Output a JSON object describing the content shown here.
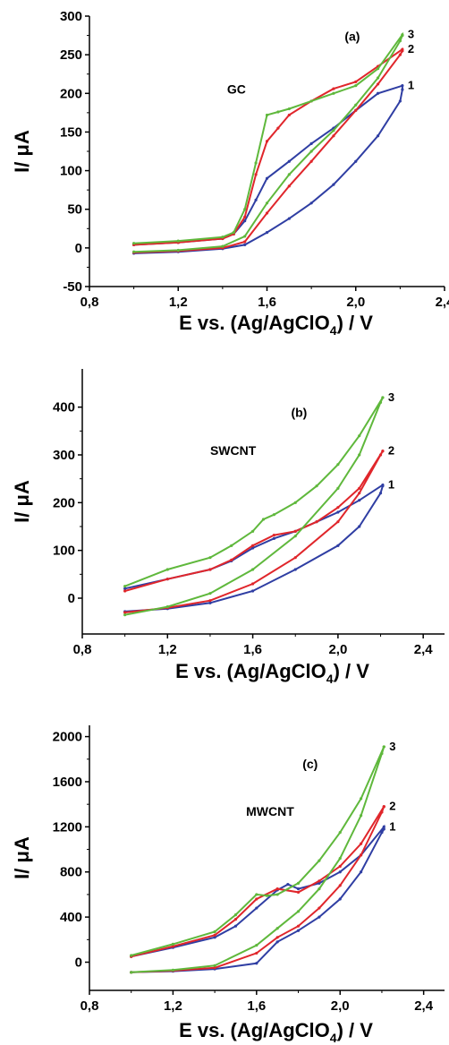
{
  "chart_data": [
    {
      "type": "line",
      "panel_label": "(a)",
      "annotation": "GC",
      "xlabel": "E vs. (Ag/AgClO",
      "xlabel_sub": "4",
      "xlabel_tail": ") / V",
      "ylabel_main": "I/ ",
      "ylabel_mu": "μA",
      "xlim": [
        0.8,
        2.4
      ],
      "ylim": [
        -50,
        300
      ],
      "xticks": [
        0.8,
        1.2,
        1.6,
        2.0,
        2.4
      ],
      "xtick_labels": [
        "0,8",
        "1,2",
        "1,6",
        "2,0",
        "2,4"
      ],
      "yticks": [
        -50,
        0,
        50,
        100,
        150,
        200,
        250,
        300
      ],
      "ytick_labels": [
        "-50",
        "0",
        "50",
        "100",
        "150",
        "200",
        "250",
        "300"
      ],
      "series": [
        {
          "label": "1",
          "color": "#2f3ea3",
          "forward": [
            [
              1.0,
              -7
            ],
            [
              1.2,
              -5
            ],
            [
              1.4,
              -1
            ],
            [
              1.5,
              4
            ],
            [
              1.6,
              20
            ],
            [
              1.7,
              38
            ],
            [
              1.8,
              58
            ],
            [
              1.9,
              82
            ],
            [
              2.0,
              112
            ],
            [
              2.1,
              145
            ],
            [
              2.2,
              190
            ],
            [
              2.21,
              205
            ]
          ],
          "reverse": [
            [
              2.21,
              210
            ],
            [
              2.1,
              200
            ],
            [
              2.0,
              178
            ],
            [
              1.9,
              155
            ],
            [
              1.8,
              135
            ],
            [
              1.7,
              112
            ],
            [
              1.6,
              90
            ],
            [
              1.55,
              62
            ],
            [
              1.5,
              35
            ],
            [
              1.45,
              18
            ],
            [
              1.4,
              12
            ],
            [
              1.2,
              7
            ],
            [
              1.0,
              4
            ]
          ]
        },
        {
          "label": "2",
          "color": "#e0262b",
          "forward": [
            [
              1.0,
              -6
            ],
            [
              1.2,
              -4
            ],
            [
              1.4,
              0
            ],
            [
              1.5,
              8
            ],
            [
              1.6,
              45
            ],
            [
              1.7,
              80
            ],
            [
              1.8,
              112
            ],
            [
              1.9,
              145
            ],
            [
              2.0,
              178
            ],
            [
              2.1,
              212
            ],
            [
              2.2,
              250
            ],
            [
              2.21,
              255
            ]
          ],
          "reverse": [
            [
              2.21,
              257
            ],
            [
              2.1,
              235
            ],
            [
              2.0,
              215
            ],
            [
              1.9,
              206
            ],
            [
              1.8,
              190
            ],
            [
              1.7,
              172
            ],
            [
              1.65,
              155
            ],
            [
              1.6,
              138
            ],
            [
              1.55,
              95
            ],
            [
              1.5,
              40
            ],
            [
              1.45,
              18
            ],
            [
              1.4,
              12
            ],
            [
              1.2,
              7
            ],
            [
              1.0,
              4
            ]
          ]
        },
        {
          "label": "3",
          "color": "#5fb83c",
          "forward": [
            [
              1.0,
              -5
            ],
            [
              1.2,
              -3
            ],
            [
              1.4,
              2
            ],
            [
              1.5,
              15
            ],
            [
              1.6,
              58
            ],
            [
              1.7,
              95
            ],
            [
              1.8,
              125
            ],
            [
              1.9,
              152
            ],
            [
              2.0,
              185
            ],
            [
              2.1,
              220
            ],
            [
              2.2,
              268
            ],
            [
              2.21,
              275
            ]
          ],
          "reverse": [
            [
              2.21,
              276
            ],
            [
              2.1,
              232
            ],
            [
              2.0,
              210
            ],
            [
              1.9,
              200
            ],
            [
              1.8,
              190
            ],
            [
              1.7,
              180
            ],
            [
              1.65,
              176
            ],
            [
              1.6,
              172
            ],
            [
              1.55,
              110
            ],
            [
              1.5,
              50
            ],
            [
              1.45,
              20
            ],
            [
              1.4,
              14
            ],
            [
              1.2,
              9
            ],
            [
              1.0,
              6
            ]
          ]
        }
      ]
    },
    {
      "type": "line",
      "panel_label": "(b)",
      "annotation": "SWCNT",
      "xlabel": "E vs. (Ag/AgClO",
      "xlabel_sub": "4",
      "xlabel_tail": ") / V",
      "ylabel_main": "I/ ",
      "ylabel_mu": "μA",
      "xlim": [
        0.8,
        2.5
      ],
      "ylim": [
        -75,
        480
      ],
      "xticks": [
        0.8,
        1.2,
        1.6,
        2.0,
        2.4
      ],
      "xtick_labels": [
        "0,8",
        "1,2",
        "1,6",
        "2,0",
        "2,4"
      ],
      "yticks": [
        0,
        100,
        200,
        300,
        400
      ],
      "ytick_labels": [
        "0",
        "100",
        "200",
        "300",
        "400"
      ],
      "series": [
        {
          "label": "1",
          "color": "#2f3ea3",
          "forward": [
            [
              1.0,
              -28
            ],
            [
              1.2,
              -22
            ],
            [
              1.4,
              -10
            ],
            [
              1.6,
              15
            ],
            [
              1.8,
              60
            ],
            [
              2.0,
              110
            ],
            [
              2.1,
              150
            ],
            [
              2.2,
              220
            ],
            [
              2.21,
              235
            ]
          ],
          "reverse": [
            [
              2.21,
              237
            ],
            [
              2.1,
              205
            ],
            [
              2.0,
              180
            ],
            [
              1.9,
              160
            ],
            [
              1.8,
              140
            ],
            [
              1.7,
              125
            ],
            [
              1.6,
              105
            ],
            [
              1.5,
              78
            ],
            [
              1.4,
              60
            ],
            [
              1.2,
              40
            ],
            [
              1.0,
              20
            ]
          ]
        },
        {
          "label": "2",
          "color": "#e0262b",
          "forward": [
            [
              1.0,
              -30
            ],
            [
              1.2,
              -20
            ],
            [
              1.4,
              -5
            ],
            [
              1.6,
              30
            ],
            [
              1.8,
              85
            ],
            [
              2.0,
              160
            ],
            [
              2.1,
              220
            ],
            [
              2.2,
              300
            ],
            [
              2.21,
              308
            ]
          ],
          "reverse": [
            [
              2.21,
              308
            ],
            [
              2.1,
              230
            ],
            [
              2.0,
              190
            ],
            [
              1.9,
              160
            ],
            [
              1.8,
              140
            ],
            [
              1.7,
              132
            ],
            [
              1.6,
              110
            ],
            [
              1.5,
              80
            ],
            [
              1.4,
              60
            ],
            [
              1.2,
              40
            ],
            [
              1.0,
              15
            ]
          ]
        },
        {
          "label": "3",
          "color": "#5fb83c",
          "forward": [
            [
              1.0,
              -35
            ],
            [
              1.2,
              -18
            ],
            [
              1.4,
              10
            ],
            [
              1.6,
              60
            ],
            [
              1.8,
              130
            ],
            [
              2.0,
              230
            ],
            [
              2.1,
              300
            ],
            [
              2.2,
              410
            ],
            [
              2.21,
              420
            ]
          ],
          "reverse": [
            [
              2.21,
              420
            ],
            [
              2.1,
              340
            ],
            [
              2.0,
              280
            ],
            [
              1.9,
              235
            ],
            [
              1.8,
              200
            ],
            [
              1.7,
              175
            ],
            [
              1.65,
              165
            ],
            [
              1.6,
              140
            ],
            [
              1.5,
              110
            ],
            [
              1.4,
              85
            ],
            [
              1.2,
              60
            ],
            [
              1.0,
              25
            ]
          ]
        }
      ]
    },
    {
      "type": "line",
      "panel_label": "(c)",
      "annotation": "MWCNT",
      "xlabel": "E vs. (Ag/AgClO",
      "xlabel_sub": "4",
      "xlabel_tail": ") / V",
      "ylabel_main": "I/ ",
      "ylabel_mu": "μA",
      "xlim": [
        0.8,
        2.5
      ],
      "ylim": [
        -250,
        2100
      ],
      "xticks": [
        0.8,
        1.2,
        1.6,
        2.0,
        2.4
      ],
      "xtick_labels": [
        "0,8",
        "1,2",
        "1,6",
        "2,0",
        "2,4"
      ],
      "yticks": [
        0,
        400,
        800,
        1200,
        1600,
        2000
      ],
      "ytick_labels": [
        "0",
        "400",
        "800",
        "1200",
        "1600",
        "2000"
      ],
      "series": [
        {
          "label": "1",
          "color": "#2f3ea3",
          "forward": [
            [
              1.0,
              -90
            ],
            [
              1.2,
              -80
            ],
            [
              1.4,
              -60
            ],
            [
              1.6,
              -10
            ],
            [
              1.7,
              180
            ],
            [
              1.8,
              280
            ],
            [
              1.9,
              400
            ],
            [
              2.0,
              560
            ],
            [
              2.1,
              800
            ],
            [
              2.2,
              1150
            ],
            [
              2.21,
              1180
            ]
          ],
          "reverse": [
            [
              2.21,
              1200
            ],
            [
              2.1,
              950
            ],
            [
              2.0,
              800
            ],
            [
              1.9,
              700
            ],
            [
              1.8,
              650
            ],
            [
              1.75,
              690
            ],
            [
              1.7,
              640
            ],
            [
              1.6,
              480
            ],
            [
              1.5,
              320
            ],
            [
              1.4,
              220
            ],
            [
              1.2,
              130
            ],
            [
              1.0,
              50
            ]
          ]
        },
        {
          "label": "2",
          "color": "#e0262b",
          "forward": [
            [
              1.0,
              -90
            ],
            [
              1.2,
              -75
            ],
            [
              1.4,
              -50
            ],
            [
              1.6,
              80
            ],
            [
              1.7,
              220
            ],
            [
              1.8,
              320
            ],
            [
              1.9,
              480
            ],
            [
              2.0,
              680
            ],
            [
              2.1,
              950
            ],
            [
              2.2,
              1330
            ],
            [
              2.21,
              1380
            ]
          ],
          "reverse": [
            [
              2.21,
              1380
            ],
            [
              2.1,
              1050
            ],
            [
              2.0,
              850
            ],
            [
              1.9,
              720
            ],
            [
              1.8,
              620
            ],
            [
              1.7,
              650
            ],
            [
              1.6,
              560
            ],
            [
              1.5,
              380
            ],
            [
              1.4,
              240
            ],
            [
              1.2,
              140
            ],
            [
              1.0,
              50
            ]
          ]
        },
        {
          "label": "3",
          "color": "#5fb83c",
          "forward": [
            [
              1.0,
              -90
            ],
            [
              1.2,
              -70
            ],
            [
              1.4,
              -30
            ],
            [
              1.6,
              150
            ],
            [
              1.7,
              300
            ],
            [
              1.8,
              450
            ],
            [
              1.9,
              650
            ],
            [
              2.0,
              920
            ],
            [
              2.1,
              1300
            ],
            [
              2.2,
              1850
            ],
            [
              2.21,
              1910
            ]
          ],
          "reverse": [
            [
              2.21,
              1910
            ],
            [
              2.1,
              1450
            ],
            [
              2.0,
              1150
            ],
            [
              1.9,
              900
            ],
            [
              1.8,
              700
            ],
            [
              1.7,
              600
            ],
            [
              1.65,
              590
            ],
            [
              1.6,
              600
            ],
            [
              1.5,
              420
            ],
            [
              1.4,
              270
            ],
            [
              1.2,
              160
            ],
            [
              1.0,
              60
            ]
          ]
        }
      ]
    }
  ]
}
